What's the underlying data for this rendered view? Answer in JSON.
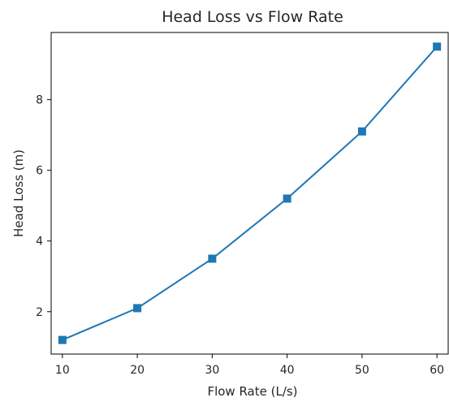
{
  "chart_data": {
    "type": "line",
    "title": "Head Loss vs Flow Rate",
    "xlabel": "Flow Rate (L/s)",
    "ylabel": "Head Loss (m)",
    "x": [
      10,
      20,
      30,
      40,
      50,
      60
    ],
    "series": [
      {
        "values": [
          1.2,
          2.1,
          3.5,
          5.2,
          7.1,
          9.5
        ],
        "color": "#1f77b4",
        "marker": "square"
      }
    ],
    "xlim": [
      8.5,
      61.5
    ],
    "ylim": [
      0.8,
      9.9
    ],
    "xticks": [
      10,
      20,
      30,
      40,
      50,
      60
    ],
    "yticks": [
      2,
      4,
      6,
      8
    ],
    "grid": false,
    "legend": "none"
  }
}
